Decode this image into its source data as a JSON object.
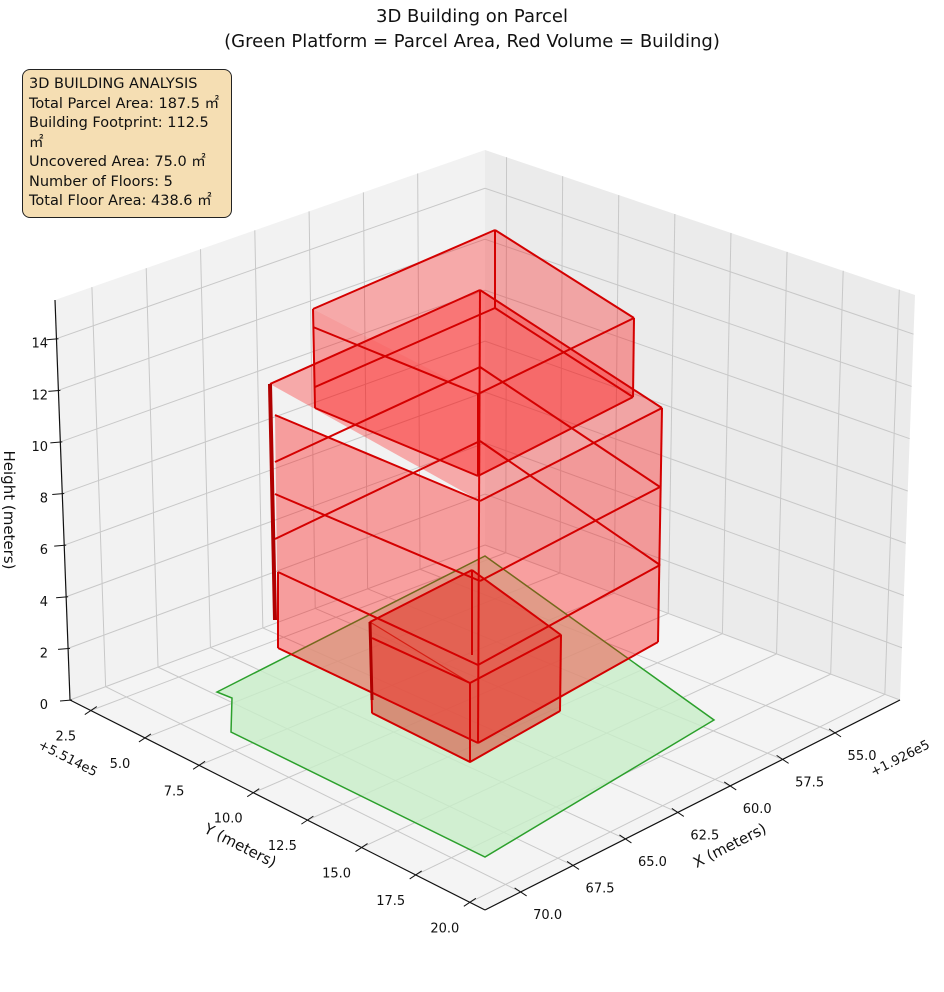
{
  "title": {
    "line1": "3D Building on Parcel",
    "line2": "(Green Platform = Parcel Area, Red Volume = Building)"
  },
  "info_box": {
    "heading": "3D BUILDING ANALYSIS",
    "lines": [
      "Total Parcel Area: 187.5 ㎡",
      "Building Footprint: 112.5 ㎡",
      "Uncovered Area: 75.0 ㎡",
      "Number of Floors: 5",
      "Total Floor Area: 438.6 ㎡"
    ]
  },
  "colors": {
    "parcel_fill": "#c8eec8",
    "parcel_edge": "#2ca02c",
    "building_fill": "#ff0000",
    "building_edge": "#d40000",
    "infobox_bg": "#f5deb3",
    "pane": "#f2f2f2",
    "grid": "#c8c8c8"
  },
  "chart_data": {
    "type": "bar",
    "projection": "3d",
    "title": "3D Building on Parcel\n(Green Platform = Parcel Area, Red Volume = Building)",
    "xlabel": "X (meters)",
    "ylabel": "Y (meters)",
    "zlabel": "Height (meters)",
    "x_offset_label": "+1.926e5",
    "y_offset_label": "+5.514e5",
    "xlim": [
      51.9,
      71.7
    ],
    "ylim": [
      1.54,
      20.7
    ],
    "zlim": [
      0,
      15.5
    ],
    "xticks": [
      55.0,
      57.5,
      60.0,
      62.5,
      65.0,
      67.5,
      70.0
    ],
    "xtick_labels": [
      "55.0",
      "57.5",
      "60.0",
      "62.5",
      "65.0",
      "67.5",
      "70.0"
    ],
    "yticks": [
      2.5,
      5.0,
      7.5,
      10.0,
      12.5,
      15.0,
      17.5,
      20.0
    ],
    "ytick_labels": [
      "2.5",
      "5.0",
      "7.5",
      "10.0",
      "12.5",
      "15.0",
      "17.5",
      "20.0"
    ],
    "zticks": [
      0,
      2,
      4,
      6,
      8,
      10,
      12,
      14
    ],
    "ztick_labels": [
      "0",
      "2",
      "4",
      "6",
      "8",
      "10",
      "12",
      "14"
    ],
    "grid": true,
    "series": [
      {
        "name": "Parcel Area",
        "kind": "platform",
        "area_m2": 187.5
      },
      {
        "name": "Building",
        "kind": "volume",
        "footprint_m2": 112.5,
        "floors": 5,
        "total_floor_area_m2": 438.6
      }
    ]
  }
}
